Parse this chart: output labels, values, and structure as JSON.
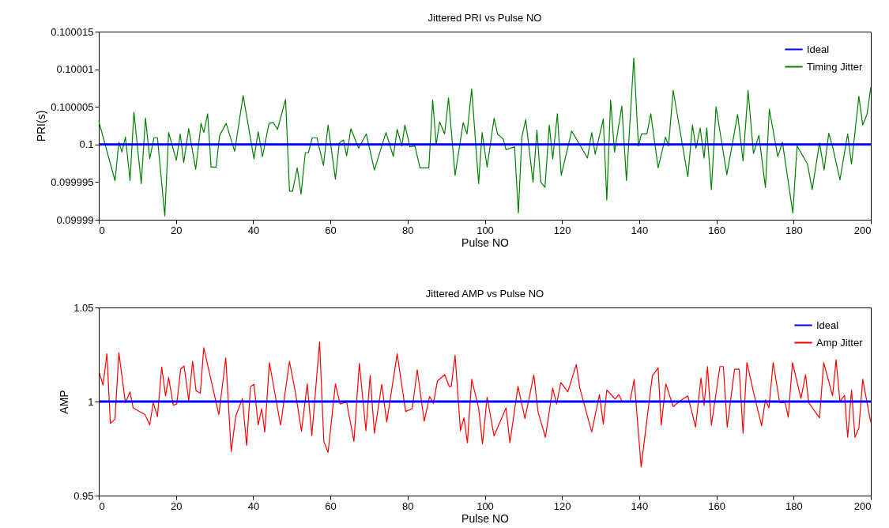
{
  "chart_data": [
    {
      "type": "line",
      "title": "Jittered PRI vs Pulse NO",
      "xlabel": "Pulse NO",
      "ylabel": "PRI(s)",
      "xlim": [
        0,
        200
      ],
      "xticks": [
        0,
        20,
        40,
        60,
        80,
        100,
        120,
        140,
        160,
        180,
        200
      ],
      "ylim": [
        0.09999,
        0.100015
      ],
      "yticks": [
        0.09999,
        0.099995,
        0.1,
        0.100005,
        0.10001,
        0.100015
      ],
      "legend": "top right",
      "grid": false,
      "series": [
        {
          "name": "Ideal",
          "color": "#0000ff",
          "x": [
            0,
            200
          ],
          "values": [
            0.1,
            0.1
          ]
        },
        {
          "name": "Timing Jitter",
          "color": "#008000",
          "x": [
            0,
            4.2,
            5.2,
            6,
            6.9,
            8.1,
            9.1,
            11,
            12.1,
            13.2,
            14.3,
            15.2,
            17.1,
            18.1,
            20.1,
            21.1,
            22,
            23.3,
            25.1,
            26.5,
            27.2,
            28.2,
            29.1,
            30.4,
            31.3,
            33,
            35.2,
            37.4,
            40.2,
            41.3,
            42.4,
            44.1,
            45.2,
            46.3,
            48.4,
            49.4,
            50.2,
            51.4,
            52.4,
            53.5,
            54.3,
            55.3,
            56.5,
            58.2,
            59.4,
            61.3,
            62.3,
            63.4,
            64.2,
            65.3,
            67.3,
            69.3,
            71.4,
            74.4,
            76.3,
            77.3,
            78.5,
            79.3,
            80.6,
            81.9,
            83.2,
            85.5,
            86.5,
            87.4,
            88.3,
            89.6,
            90.6,
            92.3,
            94.4,
            95.4,
            96.6,
            98.4,
            99.3,
            100.6,
            102.4,
            103.3,
            104.8,
            105.5,
            107.7,
            108.7,
            109.6,
            110.6,
            112.5,
            113.5,
            114.5,
            115.6,
            116.7,
            117.6,
            118.8,
            119.8,
            122.5,
            126.6,
            127.7,
            128.6,
            130.7,
            131.6,
            132.6,
            133.6,
            135.5,
            136.7,
            138.6,
            139.8,
            140.6,
            142,
            143,
            144.9,
            146.8,
            147.6,
            148.8,
            152.6,
            153.8,
            154.7,
            155.8,
            156.8,
            157.5,
            158.7,
            159.9,
            162.7,
            165.5,
            166.9,
            168.2,
            169.6,
            171,
            172.7,
            173.7,
            175.9,
            177.1,
            179.8,
            180.9,
            183.6,
            184.8,
            186.7,
            187.9,
            189.1,
            190.2,
            192,
            194,
            195,
            196.9,
            197.9,
            199,
            200
          ],
          "values": [
            0.1000031,
            0.0999952,
            0.1000003,
            0.099999,
            0.100001,
            0.0999952,
            0.1000043,
            0.0999948,
            0.1000035,
            0.0999981,
            0.1000009,
            0.1000009,
            0.0999905,
            0.1000016,
            0.0999979,
            0.1000014,
            0.0999976,
            0.1000021,
            0.0999967,
            0.1000028,
            0.1000016,
            0.1000041,
            0.099997,
            0.099997,
            0.1000012,
            0.1000028,
            0.0999991,
            0.1000065,
            0.0999981,
            0.1000017,
            0.0999984,
            0.1000028,
            0.1000029,
            0.100002,
            0.100006,
            0.0999938,
            0.0999938,
            0.0999969,
            0.0999934,
            0.0999989,
            0.0999989,
            0.1000009,
            0.1000009,
            0.0999972,
            0.1000026,
            0.0999954,
            0.1000002,
            0.1000006,
            0.0999985,
            0.1000021,
            0.0999995,
            0.1000014,
            0.0999966,
            0.1000016,
            0.0999984,
            0.100002,
            0.0999998,
            0.1000026,
            0.0999997,
            0.0999998,
            0.0999969,
            0.0999969,
            0.1000059,
            0.1,
            0.100003,
            0.1000014,
            0.1000062,
            0.0999959,
            0.1000029,
            0.1000014,
            0.1000074,
            0.0999948,
            0.1000016,
            0.099997,
            0.1000035,
            0.1000014,
            0.1000007,
            0.0999993,
            0.0999997,
            0.0999909,
            0.100001,
            0.1000033,
            0.099995,
            0.1000019,
            0.099995,
            0.0999943,
            0.1000026,
            0.0999981,
            0.1000041,
            0.0999959,
            0.1000018,
            0.0999982,
            0.1000016,
            0.0999987,
            0.1000034,
            0.0999926,
            0.1000059,
            0.099999,
            0.1000051,
            0.0999952,
            0.1000115,
            0.0999998,
            0.1000014,
            0.1000014,
            0.1000041,
            0.0999969,
            0.100001,
            0.0999998,
            0.1000072,
            0.0999957,
            0.1000026,
            0.0999995,
            0.1000022,
            0.0999982,
            0.1000022,
            0.099994,
            0.100005,
            0.099996,
            0.100004,
            0.0999978,
            0.1000072,
            0.0999988,
            0.1000012,
            0.0999943,
            0.1000047,
            0.0999984,
            0.1000003,
            0.0999909,
            0.0999998,
            0.0999974,
            0.099994,
            0.1000002,
            0.0999966,
            0.1000015,
            0.0999995,
            0.0999953,
            0.1000014,
            0.0999974,
            0.1000064,
            0.1000026,
            0.100004,
            0.1000076
          ]
        }
      ]
    },
    {
      "type": "line",
      "title": "Jittered AMP vs Pulse NO",
      "xlabel": "Pulse NO",
      "ylabel": "AMP",
      "xlim": [
        0,
        200
      ],
      "xticks": [
        0,
        20,
        40,
        60,
        80,
        100,
        120,
        140,
        160,
        180,
        200
      ],
      "ylim": [
        0.95,
        1.05
      ],
      "yticks": [
        0.95,
        1,
        1.05
      ],
      "legend": "top right",
      "grid": false,
      "series": [
        {
          "name": "Ideal",
          "color": "#0000ff",
          "x": [
            0,
            200
          ],
          "values": [
            1,
            1
          ]
        },
        {
          "name": "Amp Jitter",
          "color": "#ff0000",
          "x": [
            0.2,
            1.1,
            2.1,
            3,
            4.2,
            5.2,
            6.9,
            8.1,
            8.9,
            12,
            13.2,
            14.1,
            15.2,
            16.3,
            17.3,
            18.1,
            19.3,
            20.2,
            21.2,
            22.1,
            23.3,
            24.3,
            25.2,
            26.3,
            27.2,
            31.1,
            32.9,
            34.3,
            35.5,
            37.2,
            38.3,
            39.3,
            40.2,
            41.3,
            42.2,
            43,
            44.2,
            47.1,
            49.4,
            51,
            52.5,
            54,
            55.2,
            57.2,
            58.3,
            59.4,
            61.3,
            62.5,
            64.2,
            66.1,
            67.5,
            69.2,
            70.3,
            71.4,
            73.3,
            74.6,
            77.3,
            79.5,
            81.2,
            82.5,
            84.3,
            85.7,
            86.7,
            87.7,
            89.6,
            90.8,
            91.3,
            92.3,
            93.7,
            94.6,
            95.5,
            96.6,
            98.4,
            99.4,
            100.6,
            102.4,
            105.5,
            106.5,
            108.6,
            110.4,
            112.7,
            113.8,
            115.7,
            117.6,
            118.6,
            119.7,
            121.5,
            123.7,
            124.6,
            127.7,
            129.7,
            130.7,
            131.6,
            133.8,
            134.7,
            135.6,
            137.6,
            138.7,
            140.5,
            143.4,
            144.9,
            145.7,
            146.9,
            148.8,
            150.6,
            152.6,
            154.6,
            156,
            156.8,
            157.7,
            158.7,
            160.9,
            161.8,
            162.8,
            164.7,
            165.9,
            166.9,
            167.9,
            169.6,
            171.7,
            172.7,
            173.6,
            174.7,
            176.4,
            177.8,
            178.6,
            179.7,
            181.9,
            183.1,
            183.9,
            186.7,
            187.8,
            190.1,
            191,
            192,
            193.2,
            194,
            195,
            195.9,
            196.9,
            197.9,
            200
          ],
          "values": [
            1.0151,
            1.0087,
            1.0254,
            0.9884,
            0.9906,
            1.026,
            0.9994,
            1.0051,
            0.9966,
            0.993,
            0.9876,
            0.9994,
            0.992,
            1.0183,
            1.003,
            1.0129,
            0.998,
            0.9987,
            1.0172,
            1.0189,
            1.0006,
            1.0214,
            1.0058,
            1.0044,
            1.0286,
            0.993,
            1.0232,
            0.9734,
            0.9923,
            1.0016,
            0.9767,
            1.008,
            1.0091,
            0.9876,
            0.9962,
            0.9838,
            1.0207,
            0.9874,
            1.0214,
            1.0041,
            0.9842,
            1.0094,
            0.982,
            1.0317,
            0.9788,
            0.9729,
            1.0094,
            0.9987,
            0.9997,
            0.9788,
            1.0203,
            0.9845,
            1.0139,
            0.9831,
            1.0091,
            0.9891,
            1.0254,
            0.9947,
            0.9962,
            1.0169,
            0.9895,
            1.0027,
            0.999,
            1.0108,
            1.0143,
            1.008,
            1.008,
            1.0246,
            0.9845,
            0.9913,
            0.9781,
            1.0118,
            0.9966,
            0.9774,
            1.0023,
            0.9817,
            0.9966,
            0.9781,
            1.008,
            0.9909,
            1.0141,
            0.9945,
            0.981,
            1.0072,
            0.9987,
            1.0101,
            1.0051,
            1.0197,
            1.0072,
            0.9838,
            1.0037,
            0.9881,
            1.0061,
            1.0013,
            1.0037,
            0.9999,
            0.9999,
            1.0118,
            0.9653,
            1.0136,
            1.0179,
            0.9874,
            1.0094,
            0.9973,
            1.0004,
            1.003,
            0.9864,
            1.0126,
            0.998,
            1.0186,
            0.9874,
            1.0186,
            1.0186,
            0.9864,
            1.0172,
            1.0172,
            0.9831,
            1.0207,
            1.0051,
            0.9871,
            1.0009,
            0.9966,
            1.0207,
            0.9994,
            0.9994,
            0.9916,
            1.0207,
            1.0016,
            1.0143,
            0.9994,
            0.9913,
            1.0207,
            1.003,
            1.0222,
            1.0001,
            1.0033,
            0.981,
            1.0061,
            0.981,
            0.9859,
            1.0118,
            0.9888
          ]
        }
      ]
    }
  ]
}
